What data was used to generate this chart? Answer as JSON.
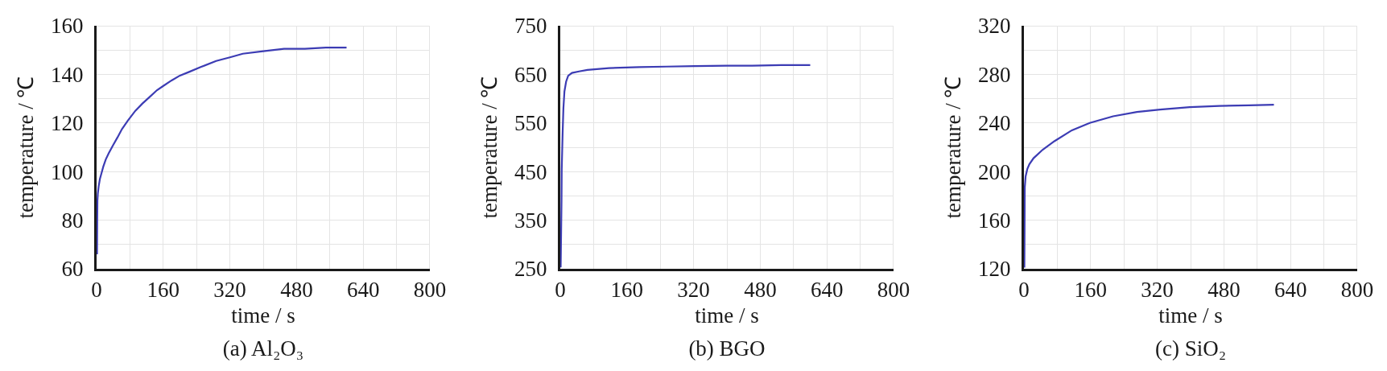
{
  "chart_data": [
    {
      "type": "line",
      "title": "(a) Al₂O₃",
      "xlabel": "time / s",
      "ylabel": "temperature / ℃",
      "x": [
        1,
        1.5,
        2,
        3,
        5,
        8,
        12,
        16,
        22,
        29,
        40,
        50,
        61,
        75,
        93,
        110,
        126,
        145,
        158,
        180,
        200,
        222,
        250,
        287,
        320,
        351,
        400,
        450,
        500,
        550,
        600
      ],
      "series": [
        {
          "color": "#3c3cb4",
          "values": [
            66,
            80,
            88,
            91,
            94,
            97,
            99.5,
            102,
            105,
            107.5,
            111,
            114,
            117.5,
            121,
            125,
            128,
            130.5,
            133.5,
            135,
            137.5,
            139.5,
            141,
            143,
            145.5,
            147,
            148.5,
            149.5,
            150.5,
            150.5,
            151,
            151
          ]
        }
      ],
      "xlim": [
        0,
        800
      ],
      "ylim": [
        60,
        160
      ],
      "xticks": [
        0,
        {
          "value": 80,
          "label": null
        },
        160,
        {
          "value": 240,
          "label": null
        },
        320,
        {
          "value": 400,
          "label": null
        },
        480,
        {
          "value": 560,
          "label": null
        },
        640,
        {
          "value": 720,
          "label": null
        },
        800
      ],
      "yticks": [
        60,
        {
          "value": 70,
          "label": null
        },
        80,
        {
          "value": 90,
          "label": null
        },
        100,
        {
          "value": 110,
          "label": null
        },
        120,
        {
          "value": 130,
          "label": null
        },
        140,
        {
          "value": 150,
          "label": null
        },
        160
      ],
      "grid": true,
      "marker": "none",
      "line_style": "solid"
    },
    {
      "type": "line",
      "title": "(b) BGO",
      "xlabel": "time / s",
      "ylabel": "temperature / ℃",
      "x": [
        1,
        3,
        3.5,
        5.5,
        7.5,
        10,
        14,
        19,
        28,
        45,
        65,
        117,
        190,
        255,
        323,
        400,
        461,
        530,
        600
      ],
      "series": [
        {
          "color": "#3c3cb4",
          "values": [
            253,
            390,
            455,
            525,
            580,
            615,
            635,
            647,
            653,
            656,
            659,
            663,
            665,
            666,
            667,
            668,
            668,
            669,
            669
          ]
        }
      ],
      "xlim": [
        0,
        800
      ],
      "ylim": [
        250,
        750
      ],
      "xticks": [
        0,
        {
          "value": 80,
          "label": null
        },
        160,
        {
          "value": 240,
          "label": null
        },
        320,
        {
          "value": 400,
          "label": null
        },
        480,
        {
          "value": 560,
          "label": null
        },
        640,
        {
          "value": 720,
          "label": null
        },
        800
      ],
      "yticks": [
        250,
        {
          "value": 300,
          "label": null
        },
        350,
        {
          "value": 400,
          "label": null
        },
        450,
        {
          "value": 500,
          "label": null
        },
        550,
        {
          "value": 600,
          "label": null
        },
        650,
        {
          "value": 700,
          "label": null
        },
        750
      ],
      "grid": true,
      "marker": "none",
      "line_style": "solid"
    },
    {
      "type": "line",
      "title": "(c) SiO₂",
      "xlabel": "time / s",
      "ylabel": "temperature / ℃",
      "x": [
        1,
        1.5,
        2,
        4,
        8,
        13,
        23,
        45,
        73,
        115,
        158,
        214,
        271,
        327,
        398,
        469,
        540,
        600
      ],
      "series": [
        {
          "color": "#3c3cb4",
          "values": [
            121,
            153,
            187,
            196,
            202,
            206,
            211,
            218,
            225,
            234,
            240,
            245.5,
            249,
            251,
            253,
            254,
            254.5,
            255
          ]
        }
      ],
      "xlim": [
        0,
        800
      ],
      "ylim": [
        120,
        320
      ],
      "xticks": [
        0,
        {
          "value": 80,
          "label": null
        },
        160,
        {
          "value": 240,
          "label": null
        },
        320,
        {
          "value": 400,
          "label": null
        },
        480,
        {
          "value": 560,
          "label": null
        },
        640,
        {
          "value": 720,
          "label": null
        },
        800
      ],
      "yticks": [
        120,
        {
          "value": 140,
          "label": null
        },
        160,
        {
          "value": 180,
          "label": null
        },
        200,
        {
          "value": 220,
          "label": null
        },
        240,
        {
          "value": 260,
          "label": null
        },
        280,
        {
          "value": 300,
          "label": null
        },
        320
      ],
      "grid": true,
      "marker": "none",
      "line_style": "solid"
    }
  ]
}
